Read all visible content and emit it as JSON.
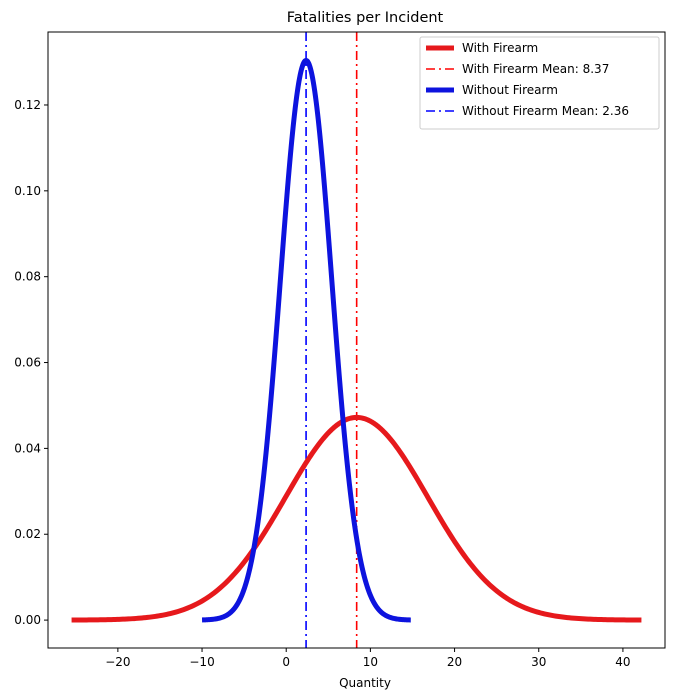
{
  "chart_data": {
    "type": "line",
    "title": "Fatalities per Incident",
    "xlabel": "Quantity",
    "ylabel": "",
    "xlim": [
      -28.3,
      45.0
    ],
    "ylim": [
      -0.0065,
      0.137
    ],
    "xticks": [
      -20,
      -10,
      0,
      10,
      20,
      30,
      40
    ],
    "xtick_labels": [
      "−20",
      "−10",
      "0",
      "10",
      "20",
      "30",
      "40"
    ],
    "yticks": [
      0.0,
      0.02,
      0.04,
      0.06,
      0.08,
      0.1,
      0.12
    ],
    "ytick_labels": [
      "0.00",
      "0.02",
      "0.04",
      "0.06",
      "0.08",
      "0.10",
      "0.12"
    ],
    "legend_position": "top-right",
    "series": [
      {
        "name": "With Firearm",
        "kind": "normal_pdf",
        "mean": 8.37,
        "std": 8.45,
        "x_range": [
          -25.5,
          42.2
        ],
        "color": "#e6191c",
        "style": "solid"
      },
      {
        "name": "Without Firearm",
        "kind": "normal_pdf",
        "mean": 2.36,
        "std": 3.06,
        "x_range": [
          -10.0,
          14.8
        ],
        "color": "#0d13de",
        "style": "solid"
      }
    ],
    "vlines": [
      {
        "name": "With Firearm Mean: 8.37",
        "x": 8.37,
        "color": "#ff0000",
        "style": "dashdot"
      },
      {
        "name": "Without Firearm Mean: 2.36",
        "x": 2.36,
        "color": "#0000ff",
        "style": "dashdot"
      }
    ],
    "legend": [
      {
        "label": "With Firearm Mean: 8.37",
        "ref": "vline",
        "index": 0
      }
    ],
    "legend_entries": [
      {
        "label": "With Firearm",
        "color": "#e6191c",
        "style": "solid"
      },
      {
        "label": "With Firearm Mean: 8.37",
        "color": "#ff0000",
        "style": "dashdot"
      },
      {
        "label": "Without Firearm",
        "color": "#0d13de",
        "style": "solid"
      },
      {
        "label": "Without Firearm Mean: 2.36",
        "color": "#0000ff",
        "style": "dashdot"
      }
    ]
  }
}
